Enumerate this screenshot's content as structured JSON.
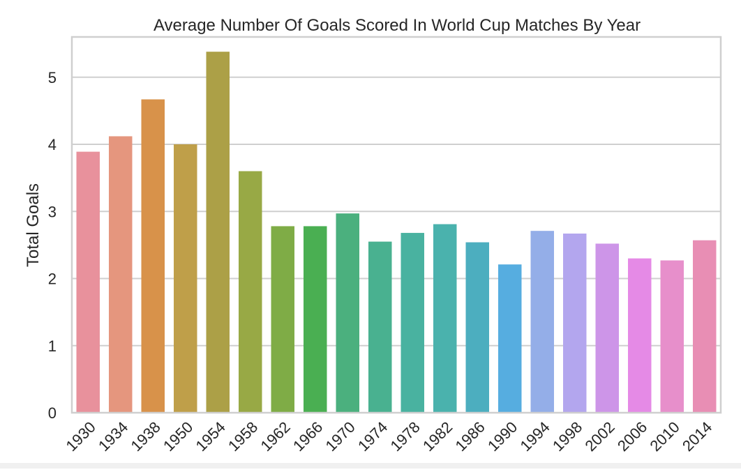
{
  "chart_data": {
    "type": "bar",
    "title": "Average Number Of Goals Scored In World Cup Matches By Year",
    "xlabel": "",
    "ylabel": "Total Goals",
    "ylim": [
      0,
      5.6
    ],
    "yticks": [
      0,
      1,
      2,
      3,
      4,
      5
    ],
    "grid": true,
    "legend": "none",
    "categories": [
      "1930",
      "1934",
      "1938",
      "1950",
      "1954",
      "1958",
      "1962",
      "1966",
      "1970",
      "1974",
      "1978",
      "1982",
      "1986",
      "1990",
      "1994",
      "1998",
      "2002",
      "2006",
      "2010",
      "2014"
    ],
    "values": [
      3.89,
      4.12,
      4.67,
      4.0,
      5.38,
      3.6,
      2.78,
      2.78,
      2.97,
      2.55,
      2.68,
      2.81,
      2.54,
      2.21,
      2.71,
      2.67,
      2.52,
      2.3,
      2.27,
      2.57
    ],
    "colors": [
      "#e8919c",
      "#e5967e",
      "#d8924a",
      "#bf9f49",
      "#aca047",
      "#98a945",
      "#7fac46",
      "#4aaf52",
      "#4bb07e",
      "#49b190",
      "#49b2a0",
      "#4ab2ad",
      "#4caebf",
      "#56ade0",
      "#94aee8",
      "#b3a6ee",
      "#cd95e8",
      "#e58ae6",
      "#e78fcb",
      "#e88eb4"
    ]
  }
}
